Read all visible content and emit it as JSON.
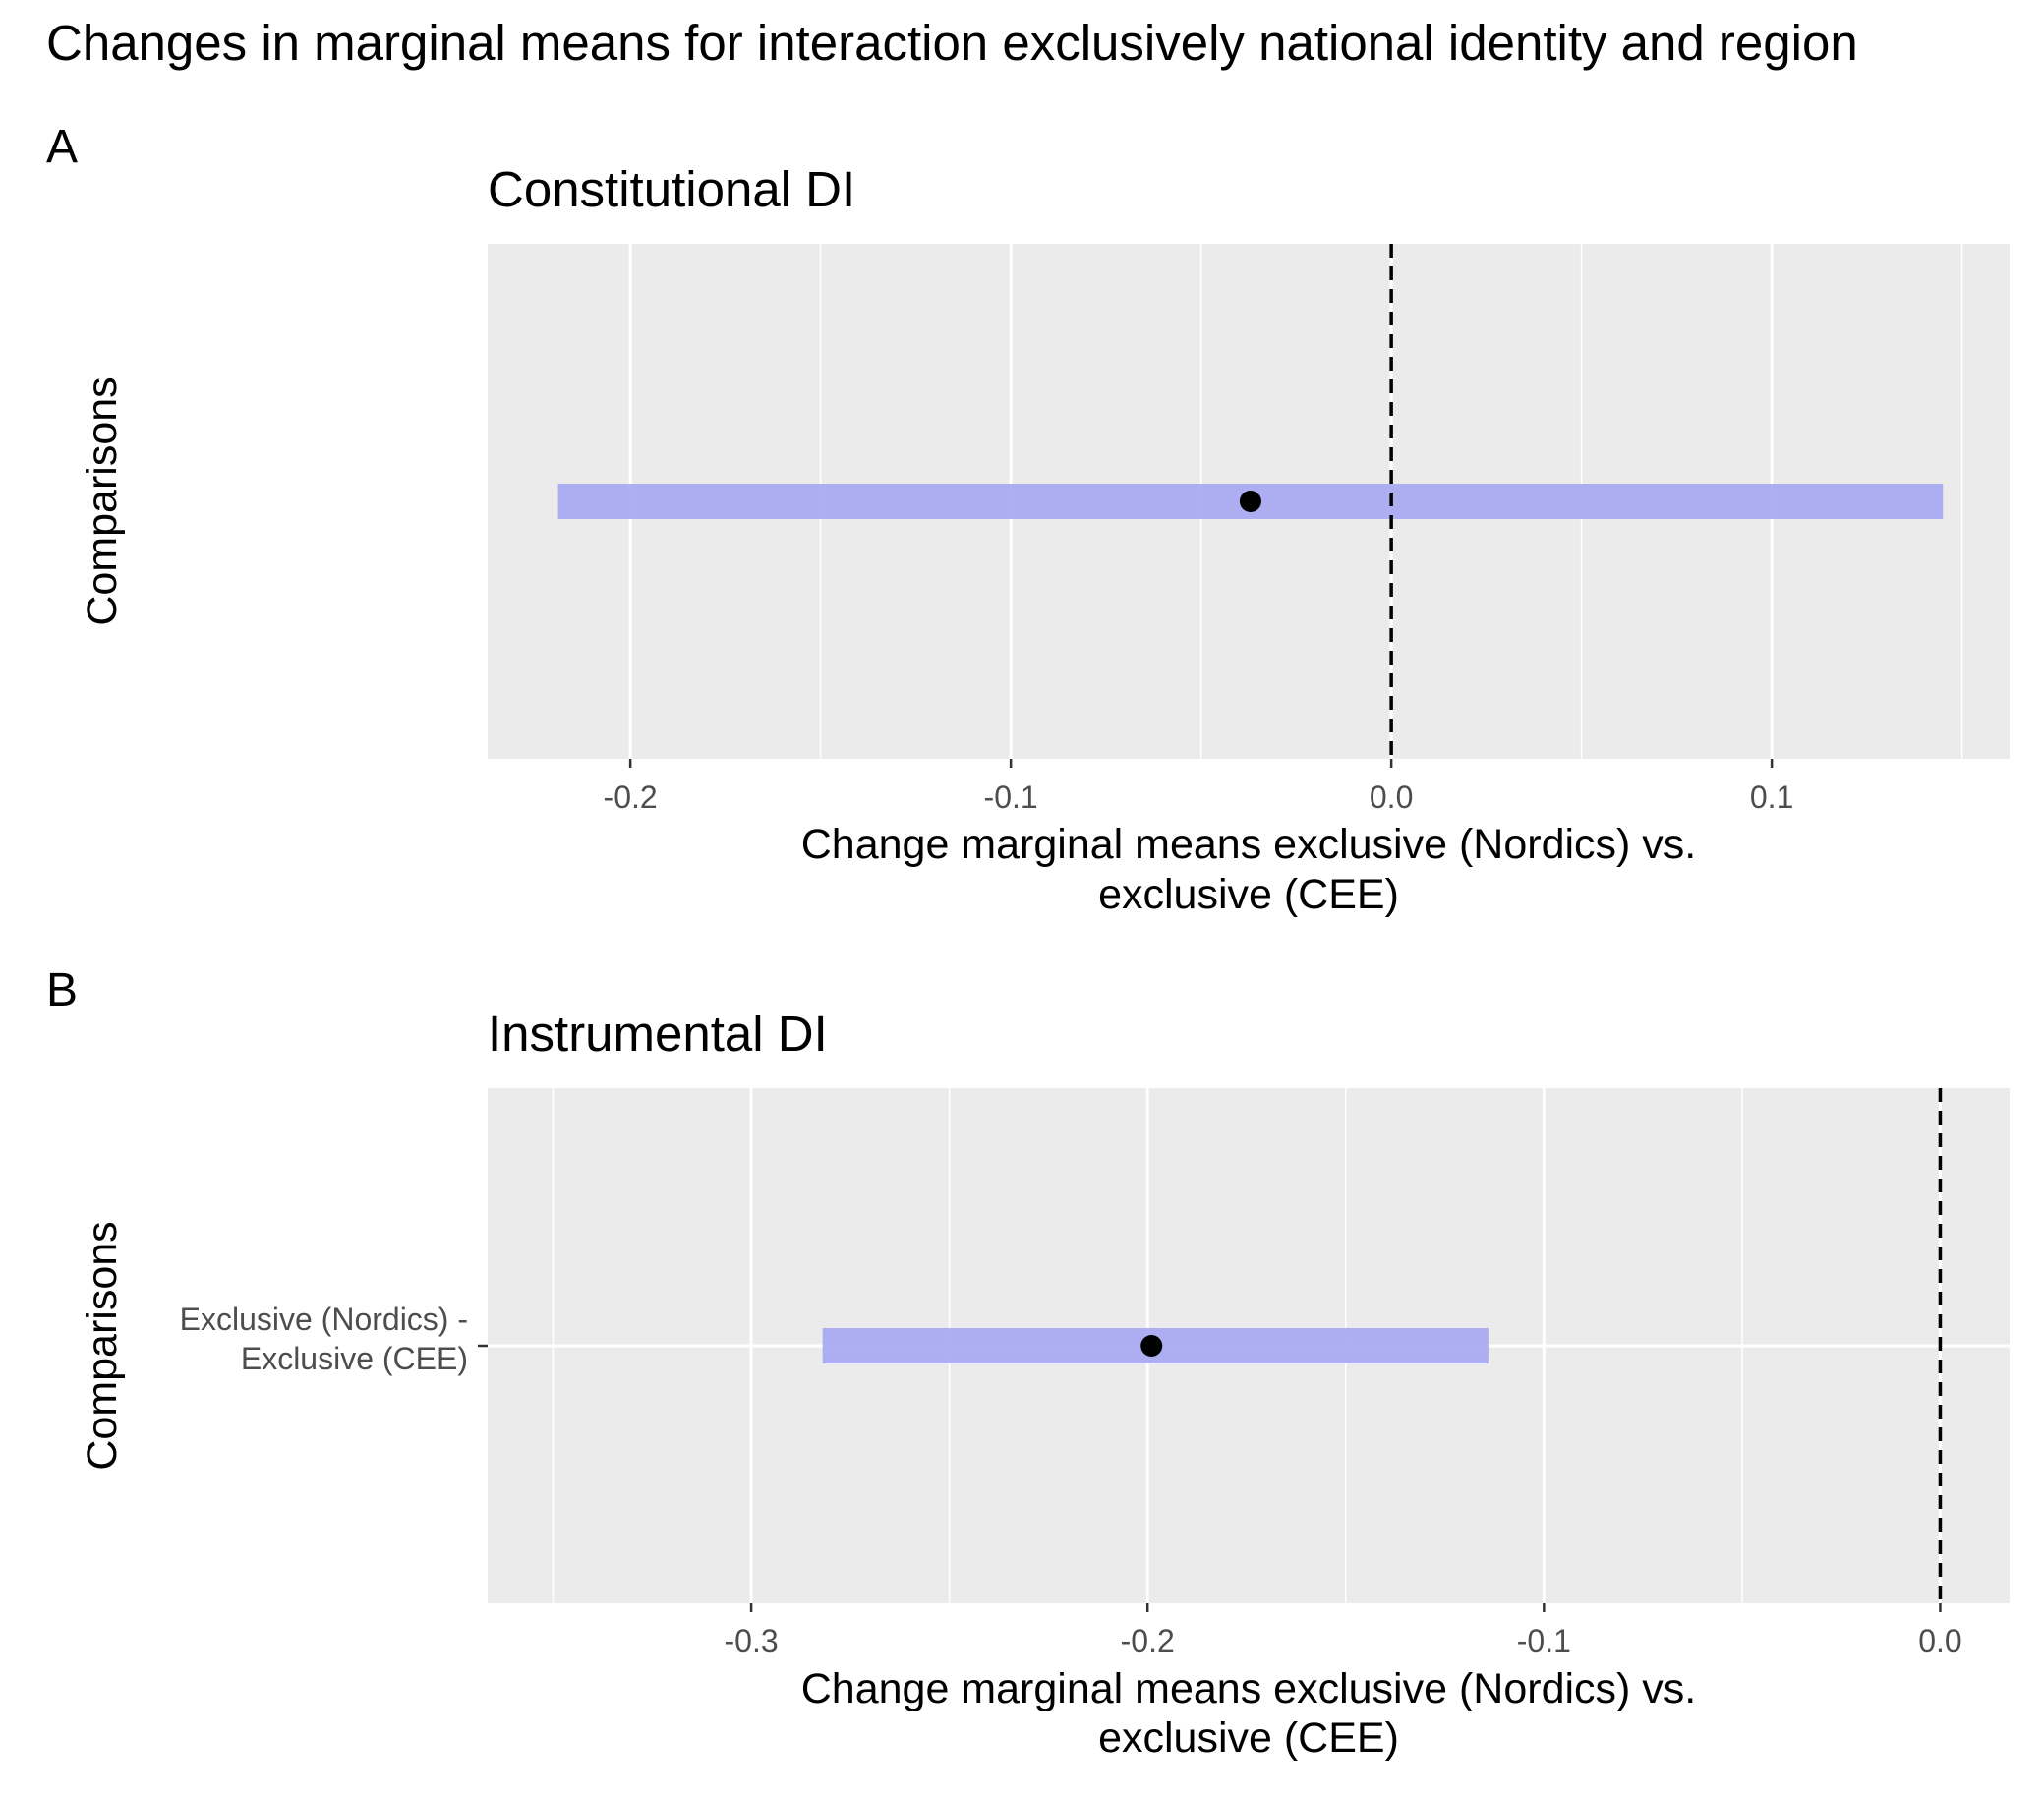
{
  "figure": {
    "title": "Changes in marginal means for interaction exclusively national identity and region"
  },
  "chart_data": [
    {
      "type": "errorbar",
      "panel_tag": "A",
      "title": "Constitutional DI",
      "xlabel": [
        "Change marginal means exclusive (Nordics) vs.",
        "exclusive (CEE)"
      ],
      "ylabel": "Comparisons",
      "xlim": [
        -0.2375,
        0.1625
      ],
      "xticks": [
        -0.2,
        -0.1,
        0.0,
        0.1
      ],
      "xtick_labels": [
        "-0.2",
        "-0.1",
        "0.0",
        "0.1"
      ],
      "categories": [],
      "estimate": [
        -0.037
      ],
      "ci_low": [
        -0.219
      ],
      "ci_high": [
        0.145
      ],
      "reference_line": 0.0,
      "point_color": "#000000",
      "band_color": "#aaaaf2",
      "background": "#ebebeb",
      "grid": true
    },
    {
      "type": "errorbar",
      "panel_tag": "B",
      "title": "Instrumental DI",
      "xlabel": [
        "Change marginal means exclusive (Nordics) vs.",
        "exclusive (CEE)"
      ],
      "ylabel": "Comparisons",
      "xlim": [
        -0.3665,
        0.0175
      ],
      "xticks": [
        -0.3,
        -0.2,
        -0.1,
        0.0
      ],
      "xtick_labels": [
        "-0.3",
        "-0.2",
        "-0.1",
        "0.0"
      ],
      "categories": [
        [
          "Exclusive (Nordics) -",
          "Exclusive (CEE)"
        ]
      ],
      "estimate": [
        -0.199
      ],
      "ci_low": [
        -0.282
      ],
      "ci_high": [
        -0.114
      ],
      "reference_line": 0.0,
      "point_color": "#000000",
      "band_color": "#aaaaf2",
      "background": "#ebebeb",
      "grid": true
    }
  ]
}
